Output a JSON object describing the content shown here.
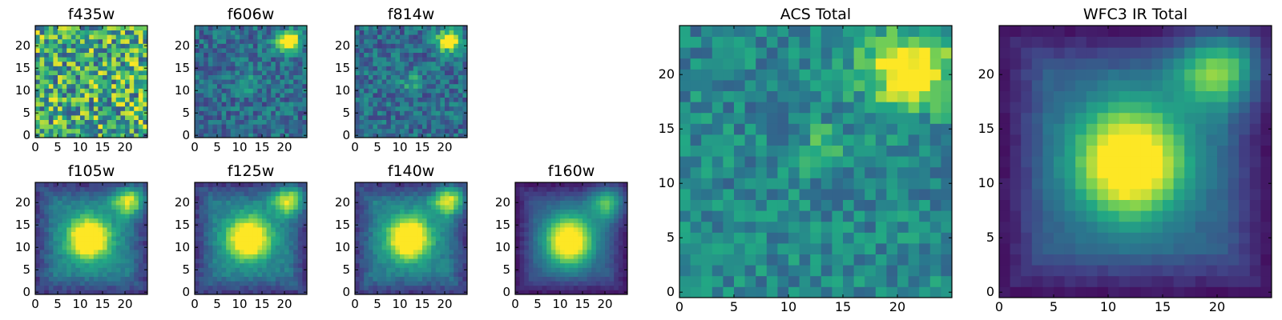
{
  "chart_data": [
    {
      "type": "heatmap",
      "title": "f435w",
      "xticks": [
        "0",
        "5",
        "10",
        "15",
        "20"
      ],
      "yticks": [
        "0",
        "5",
        "10",
        "15",
        "20"
      ],
      "grid_size": [
        25,
        25
      ],
      "xlim": [
        0,
        25
      ],
      "ylim": [
        0,
        25
      ],
      "pattern": "noise",
      "colormap": [
        "#440154",
        "#414487",
        "#2a788e",
        "#22a884",
        "#7ad151",
        "#fde725"
      ]
    },
    {
      "type": "heatmap",
      "title": "f606w",
      "xticks": [
        "0",
        "5",
        "10",
        "15",
        "20"
      ],
      "yticks": [
        "0",
        "5",
        "10",
        "15",
        "20"
      ],
      "grid_size": [
        25,
        25
      ],
      "xlim": [
        0,
        25
      ],
      "ylim": [
        0,
        25
      ],
      "pattern": "acs"
    },
    {
      "type": "heatmap",
      "title": "f814w",
      "xticks": [
        "0",
        "5",
        "10",
        "15",
        "20"
      ],
      "yticks": [
        "0",
        "5",
        "10",
        "15",
        "20"
      ],
      "grid_size": [
        25,
        25
      ],
      "xlim": [
        0,
        25
      ],
      "ylim": [
        0,
        25
      ],
      "pattern": "acs"
    },
    {
      "type": "heatmap",
      "title": "f105w",
      "xticks": [
        "0",
        "5",
        "10",
        "15",
        "20"
      ],
      "yticks": [
        "0",
        "5",
        "10",
        "15",
        "20"
      ],
      "grid_size": [
        25,
        25
      ],
      "xlim": [
        0,
        25
      ],
      "ylim": [
        0,
        25
      ],
      "pattern": "ir"
    },
    {
      "type": "heatmap",
      "title": "f125w",
      "xticks": [
        "0",
        "5",
        "10",
        "15",
        "20"
      ],
      "yticks": [
        "0",
        "5",
        "10",
        "15",
        "20"
      ],
      "grid_size": [
        25,
        25
      ],
      "xlim": [
        0,
        25
      ],
      "ylim": [
        0,
        25
      ],
      "pattern": "ir"
    },
    {
      "type": "heatmap",
      "title": "f140w",
      "xticks": [
        "0",
        "5",
        "10",
        "15",
        "20"
      ],
      "yticks": [
        "0",
        "5",
        "10",
        "15",
        "20"
      ],
      "grid_size": [
        25,
        25
      ],
      "xlim": [
        0,
        25
      ],
      "ylim": [
        0,
        25
      ],
      "pattern": "ir"
    },
    {
      "type": "heatmap",
      "title": "f160w",
      "xticks": [
        "0",
        "5",
        "10",
        "15",
        "20"
      ],
      "yticks": [
        "0",
        "5",
        "10",
        "15",
        "20"
      ],
      "grid_size": [
        25,
        25
      ],
      "xlim": [
        0,
        25
      ],
      "ylim": [
        0,
        25
      ],
      "pattern": "ir_smooth"
    },
    {
      "type": "heatmap",
      "title": "ACS Total",
      "xticks": [
        "0",
        "5",
        "10",
        "15",
        "20"
      ],
      "yticks": [
        "0",
        "5",
        "10",
        "15",
        "20"
      ],
      "grid_size": [
        25,
        25
      ],
      "xlim": [
        0,
        25
      ],
      "ylim": [
        0,
        25
      ],
      "pattern": "acs_total"
    },
    {
      "type": "heatmap",
      "title": "WFC3 IR Total",
      "xticks": [
        "0",
        "5",
        "10",
        "15",
        "20"
      ],
      "yticks": [
        "0",
        "5",
        "10",
        "15",
        "20"
      ],
      "grid_size": [
        25,
        25
      ],
      "xlim": [
        0,
        25
      ],
      "ylim": [
        0,
        25
      ],
      "pattern": "ir_total"
    }
  ]
}
